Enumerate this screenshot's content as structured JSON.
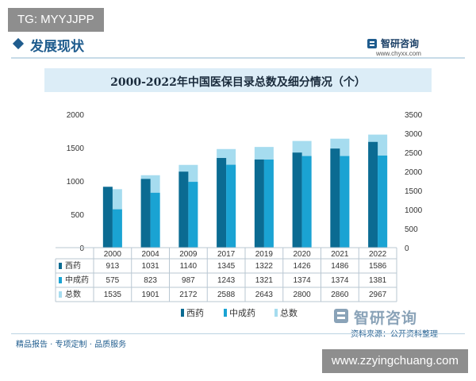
{
  "overlay": {
    "tg_label": "TG: MYYJJPP",
    "site_url": "www.zzyingchuang.com"
  },
  "header": {
    "section_title": "发展现状",
    "brand_name": "智研咨询",
    "brand_url": "www.chyxx.com"
  },
  "footer": {
    "slogan": "精品报告 · 专项定制 · 品质服务",
    "brand_name": "智研咨询",
    "source": "资料来源：公开资料整理"
  },
  "colors": {
    "western_drugs": "#0b6b92",
    "chinese_patent_drugs": "#1aa3d3",
    "total": "#a6dcef",
    "title_bar": "#dcedf7",
    "accent": "#1f5c8e"
  },
  "chart_data": {
    "type": "bar",
    "title": "2000-2022年中国医保目录总数及细分情况（个）",
    "categories": [
      "2000",
      "2004",
      "2009",
      "2017",
      "2019",
      "2020",
      "2021",
      "2022"
    ],
    "series": [
      {
        "name": "西药",
        "axis": "left",
        "values": [
          913,
          1031,
          1140,
          1345,
          1322,
          1426,
          1486,
          1586
        ]
      },
      {
        "name": "中成药",
        "axis": "left",
        "values": [
          575,
          823,
          987,
          1243,
          1321,
          1374,
          1374,
          1381
        ]
      },
      {
        "name": "总数",
        "axis": "right",
        "values": [
          1535,
          1901,
          2172,
          2588,
          2643,
          2800,
          2860,
          2967
        ]
      }
    ],
    "left_axis": {
      "ylim": [
        0,
        2000
      ],
      "ticks": [
        0,
        500,
        1000,
        1500,
        2000
      ]
    },
    "right_axis": {
      "ylim": [
        0,
        3500
      ],
      "ticks": [
        0,
        500,
        1000,
        1500,
        2000,
        2500,
        3000,
        3500
      ]
    },
    "grid": false,
    "legend_position": "bottom"
  }
}
